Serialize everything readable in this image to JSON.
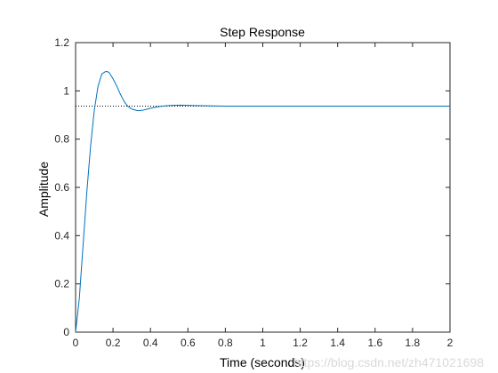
{
  "chart_data": {
    "type": "line",
    "title": "Step Response",
    "xlabel": "Time (seconds)",
    "ylabel": "Amplitude",
    "xlim": [
      0,
      2
    ],
    "ylim": [
      0,
      1.2
    ],
    "xticks": [
      "0",
      "0.2",
      "0.4",
      "0.6",
      "0.8",
      "1",
      "1.2",
      "1.4",
      "1.6",
      "1.8",
      "2"
    ],
    "yticks": [
      "0",
      "0.2",
      "0.4",
      "0.6",
      "0.8",
      "1",
      "1.2"
    ],
    "grid": false,
    "series": [
      {
        "line_color": "#0072bd",
        "x": [
          0,
          0.02,
          0.04,
          0.06,
          0.08,
          0.1,
          0.12,
          0.14,
          0.16,
          0.17,
          0.18,
          0.2,
          0.22,
          0.24,
          0.26,
          0.28,
          0.3,
          0.33,
          0.36,
          0.38,
          0.4,
          0.44,
          0.48,
          0.52,
          0.56,
          0.6,
          0.64,
          0.7,
          0.8,
          0.9,
          1.0,
          1.2,
          1.5,
          2.0
        ],
        "y": [
          0,
          0.14,
          0.36,
          0.58,
          0.77,
          0.92,
          1.02,
          1.07,
          1.08,
          1.08,
          1.075,
          1.05,
          1.02,
          0.985,
          0.955,
          0.935,
          0.925,
          0.918,
          0.92,
          0.924,
          0.928,
          0.934,
          0.938,
          0.94,
          0.941,
          0.94,
          0.939,
          0.938,
          0.937,
          0.937,
          0.937,
          0.937,
          0.937,
          0.937
        ]
      }
    ],
    "steady_state": {
      "value": 0.937,
      "line_color": "#000000",
      "line_style": "dotted"
    }
  },
  "watermark": "https://blog.csdn.net/zh471021698"
}
